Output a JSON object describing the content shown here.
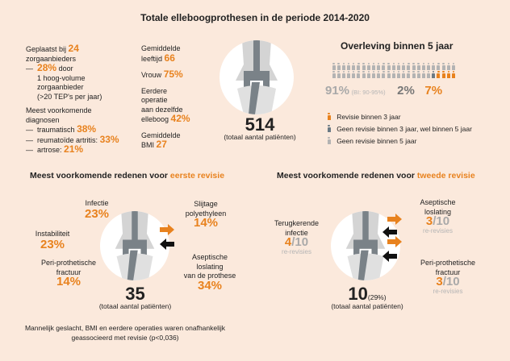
{
  "title": "Totale elleboogprothesen in de periode 2014-2020",
  "stats_left": {
    "placed_prefix": "Geplaatst bij",
    "placed_value": "24",
    "placed_suffix": "zorgaanbieders",
    "hv_dash": "—",
    "hv_value": "28%",
    "hv_suffix": "door",
    "hv_line2": "1 hoog-volume",
    "hv_line3": "zorgaanbieder",
    "hv_line4": "(>20 TEP's per jaar)",
    "diag_title1": "Meest voorkomende",
    "diag_title2": "diagnosen",
    "diagnoses": [
      {
        "label": "traumatisch",
        "value": "38%"
      },
      {
        "label": "reumatoïde artritis:",
        "value": "33%"
      },
      {
        "label": "artrose:",
        "value": "21%"
      }
    ]
  },
  "stats_mid": {
    "age_l1": "Gemiddelde",
    "age_l2": "leeftijd",
    "age_value": "66",
    "female_label": "Vrouw",
    "female_value": "75%",
    "prev_l1": "Eerdere",
    "prev_l2": "operatie",
    "prev_l3": "aan dezelfde",
    "prev_l4": "elleboog",
    "prev_value": "42%",
    "bmi_l1": "Gemiddelde",
    "bmi_l2": "BMI",
    "bmi_value": "27"
  },
  "total": {
    "value": "514",
    "label": "(totaal aantal patiënten)"
  },
  "survival": {
    "title": "Overleving binnen 5 jaar",
    "pct_none": "91%",
    "ci": "(BI: 90-95%)",
    "pct_late": "2%",
    "pct_early": "7%",
    "colors": {
      "none": "#b3b3b3",
      "late": "#6b7a85",
      "early": "#e8821e"
    },
    "legend": [
      {
        "label": "Revisie binnen 3 jaar",
        "color": "#e8821e"
      },
      {
        "label": "Geen revisie binnen 3 jaar, wel binnen 5 jaar",
        "color": "#6b7a85"
      },
      {
        "label": "Geen revisie binnen 5 jaar",
        "color": "#b3b3b3"
      }
    ]
  },
  "first": {
    "title_prefix": "Meest voorkomende redenen voor",
    "title_highlight": "eerste revisie",
    "infectie": {
      "label": "Infectie",
      "value": "23%"
    },
    "instabiliteit": {
      "label": "Instabiliteit",
      "value": "23%"
    },
    "fractuur": {
      "l1": "Peri-prothetische",
      "l2": "fractuur",
      "value": "14%"
    },
    "slijtage": {
      "l1": "Slijtage",
      "l2": "polyethyleen",
      "value": "14%"
    },
    "aseptisch": {
      "l1": "Aseptische",
      "l2": "loslating",
      "l3": "van de prothese",
      "value": "34%"
    },
    "total": "35",
    "total_label": "(totaal aantal patiënten)",
    "note1": "Mannelijk geslacht, BMI en eerdere operaties waren onafhankelijk",
    "note2": "geassocieerd met revisie (p<0,036)"
  },
  "second": {
    "title_prefix": "Meest voorkomende redenen voor",
    "title_highlight": "tweede revisie",
    "infectie": {
      "l1": "Terugkerende",
      "l2": "infectie",
      "num": "4",
      "den": "/10",
      "unit": "re-revisies"
    },
    "aseptisch": {
      "l1": "Aseptische",
      "l2": "loslating",
      "num": "3",
      "den": "/10",
      "unit": "re-revisies"
    },
    "fractuur": {
      "l1": "Peri-prothetische",
      "l2": "fractuur",
      "num": "3",
      "den": "/10",
      "unit": "re-revisies"
    },
    "total": "10",
    "total_pct": "(29%)",
    "total_label": "(totaal aantal patiënten)"
  }
}
